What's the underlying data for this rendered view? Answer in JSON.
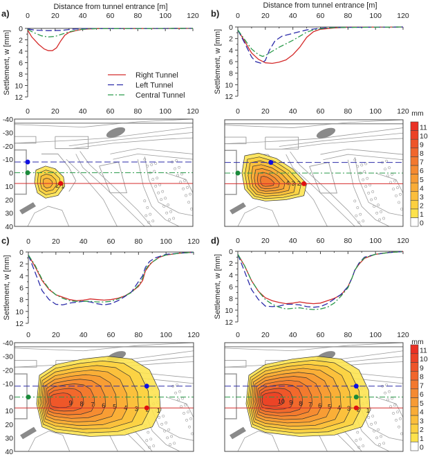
{
  "figure": {
    "x_title": "Distance from tunnel entrance [m]",
    "y_title": "Settlement, w [mm]",
    "legend": [
      "Right Tunnel",
      "Left Tunnel",
      "Central Tunnel"
    ],
    "colorbar_unit": "mm",
    "colorbar_ticks": [
      "0",
      "1",
      "2",
      "3",
      "4",
      "5",
      "6",
      "7",
      "8",
      "9",
      "10",
      "11"
    ],
    "colors": {
      "right": "#d42a2a",
      "left": "#2a2aa8",
      "central": "#2a9a4a",
      "map": "#9a9a9a"
    },
    "colormap": [
      "#ffffff",
      "#fde24c",
      "#fcd040",
      "#fbbe3b",
      "#f9ac37",
      "#f79b34",
      "#f58a31",
      "#f3782e",
      "#f1662c",
      "#ee5429",
      "#ec4226",
      "#ea3024"
    ]
  },
  "chart_data": [
    {
      "panel": "a)",
      "type": "line",
      "xlabel": "Distance from tunnel entrance [m]",
      "ylabel": "Settlement, w [mm]",
      "xlim": [
        0,
        120
      ],
      "ylim": [
        0,
        12
      ],
      "y_inverted": true,
      "xticks": [
        0,
        20,
        40,
        60,
        80,
        100,
        120
      ],
      "yticks": [
        0,
        2,
        4,
        6,
        8,
        10,
        12
      ],
      "legend": "center-right",
      "series": [
        {
          "name": "Right Tunnel",
          "style": "solid",
          "x": [
            0,
            3,
            8,
            12,
            15,
            18,
            21,
            24,
            27,
            30,
            35,
            40,
            50,
            120
          ],
          "y": [
            0.3,
            1.5,
            2.8,
            3.6,
            3.9,
            3.9,
            3.4,
            2.2,
            1.2,
            0.7,
            0.4,
            0.15,
            0.05,
            0
          ]
        },
        {
          "name": "Left Tunnel",
          "style": "dashed",
          "x": [
            0,
            5,
            15,
            25,
            30,
            35,
            40,
            120
          ],
          "y": [
            0.1,
            0.3,
            0.4,
            0.35,
            0.2,
            0.1,
            0.05,
            0
          ]
        },
        {
          "name": "Central Tunnel",
          "style": "dashdot",
          "x": [
            0,
            5,
            10,
            15,
            20,
            25,
            30,
            35,
            40,
            50,
            120
          ],
          "y": [
            0.2,
            0.8,
            1.3,
            1.5,
            1.4,
            1.0,
            0.6,
            0.35,
            0.15,
            0.05,
            0
          ]
        }
      ]
    },
    {
      "panel": "b)",
      "type": "line",
      "xlabel": "Distance from tunnel entrance [m]",
      "ylabel": "Settlement, w [mm]",
      "xlim": [
        0,
        120
      ],
      "ylim": [
        0,
        12
      ],
      "y_inverted": true,
      "xticks": [
        0,
        20,
        40,
        60,
        80,
        100,
        120
      ],
      "yticks": [
        0,
        2,
        4,
        6,
        8,
        10,
        12
      ],
      "series": [
        {
          "name": "Right Tunnel",
          "style": "solid",
          "x": [
            0,
            5,
            10,
            15,
            20,
            25,
            30,
            35,
            40,
            45,
            50,
            55,
            60,
            70,
            80,
            120
          ],
          "y": [
            0.5,
            2.5,
            4.5,
            5.6,
            6.2,
            6.3,
            6.1,
            5.7,
            4.8,
            3.5,
            1.8,
            0.8,
            0.4,
            0.15,
            0.05,
            0
          ]
        },
        {
          "name": "Left Tunnel",
          "style": "dashed",
          "x": [
            0,
            5,
            10,
            13,
            17,
            20,
            23,
            27,
            32,
            40,
            50,
            60,
            70,
            120
          ],
          "y": [
            0.5,
            2.8,
            5.2,
            6.0,
            6.3,
            5.8,
            4.0,
            2.4,
            1.6,
            1.1,
            0.5,
            0.2,
            0.08,
            0
          ]
        },
        {
          "name": "Central Tunnel",
          "style": "dashdot",
          "x": [
            0,
            5,
            10,
            15,
            18,
            21,
            25,
            30,
            40,
            50,
            55,
            60,
            70,
            120
          ],
          "y": [
            0.5,
            2.2,
            3.8,
            4.8,
            5.1,
            4.8,
            4.2,
            3.5,
            2.3,
            0.9,
            0.5,
            0.3,
            0.1,
            0
          ]
        }
      ]
    },
    {
      "panel": "c)",
      "type": "line",
      "xlim": [
        0,
        120
      ],
      "ylim": [
        0,
        12
      ],
      "y_inverted": true,
      "xticks": [
        0,
        20,
        40,
        60,
        80,
        100,
        120
      ],
      "yticks": [
        0,
        2,
        4,
        6,
        8,
        10,
        12
      ],
      "ylabel": "Settlement, w [mm]",
      "series": [
        {
          "name": "Right Tunnel",
          "style": "solid",
          "x": [
            0,
            5,
            10,
            15,
            20,
            25,
            30,
            35,
            40,
            45,
            50,
            55,
            60,
            65,
            70,
            75,
            80,
            83,
            85,
            88,
            90,
            95,
            100,
            110,
            120
          ],
          "y": [
            0.5,
            2.5,
            4.8,
            6.3,
            7.2,
            7.6,
            8.0,
            8.2,
            8.1,
            7.9,
            8.0,
            8.1,
            8.0,
            7.8,
            7.4,
            6.7,
            5.8,
            4.8,
            3.2,
            2.2,
            1.7,
            0.9,
            0.5,
            0.2,
            0.05
          ]
        },
        {
          "name": "Left Tunnel",
          "style": "dashed",
          "x": [
            0,
            5,
            10,
            15,
            20,
            25,
            30,
            40,
            45,
            50,
            55,
            60,
            65,
            70,
            75,
            80,
            83,
            85,
            88,
            92,
            100,
            110,
            120
          ],
          "y": [
            0.5,
            3.5,
            6.5,
            8.0,
            8.8,
            8.9,
            8.6,
            8.3,
            8.4,
            8.7,
            8.9,
            8.7,
            8.2,
            7.5,
            6.7,
            5.0,
            4.0,
            2.6,
            1.6,
            1.0,
            0.4,
            0.2,
            0.05
          ]
        },
        {
          "name": "Central Tunnel",
          "style": "dashdot",
          "x": [
            0,
            5,
            10,
            15,
            20,
            25,
            30,
            35,
            40,
            45,
            50,
            55,
            60,
            65,
            70,
            75,
            80,
            83,
            85,
            88,
            92,
            95,
            100,
            110,
            120
          ],
          "y": [
            0.5,
            2.3,
            4.6,
            6.2,
            7.2,
            7.8,
            8.2,
            8.3,
            8.3,
            8.3,
            8.4,
            8.4,
            8.3,
            7.9,
            7.4,
            6.8,
            5.6,
            4.4,
            3.0,
            2.0,
            1.4,
            0.9,
            0.5,
            0.2,
            0.05
          ]
        }
      ]
    },
    {
      "panel": "d)",
      "type": "line",
      "xlim": [
        0,
        120
      ],
      "ylim": [
        0,
        12
      ],
      "y_inverted": true,
      "xticks": [
        0,
        20,
        40,
        60,
        80,
        100,
        120
      ],
      "yticks": [
        0,
        2,
        4,
        6,
        8,
        10,
        12
      ],
      "ylabel": "Settlement, w [mm]",
      "series": [
        {
          "name": "Right Tunnel",
          "style": "solid",
          "x": [
            0,
            5,
            10,
            15,
            20,
            25,
            30,
            35,
            40,
            45,
            50,
            55,
            60,
            65,
            70,
            75,
            80,
            83,
            85,
            88,
            92,
            100,
            110,
            120
          ],
          "y": [
            0.5,
            2.5,
            5.0,
            6.8,
            7.9,
            8.4,
            8.7,
            8.9,
            8.8,
            8.6,
            8.8,
            8.9,
            8.8,
            8.4,
            8.0,
            7.4,
            6.0,
            4.5,
            3.2,
            2.2,
            1.2,
            0.5,
            0.2,
            0.05
          ]
        },
        {
          "name": "Left Tunnel",
          "style": "dashed",
          "x": [
            0,
            5,
            10,
            15,
            20,
            25,
            30,
            35,
            40,
            45,
            50,
            55,
            60,
            65,
            70,
            75,
            80,
            83,
            85,
            88,
            92,
            100,
            110,
            120
          ],
          "y": [
            0.5,
            3.5,
            6.5,
            8.2,
            9.3,
            9.4,
            9.3,
            9.0,
            9.0,
            9.1,
            9.4,
            9.5,
            9.4,
            8.9,
            8.1,
            7.3,
            6.0,
            4.5,
            3.2,
            2.0,
            1.0,
            0.5,
            0.2,
            0.05
          ]
        },
        {
          "name": "Central Tunnel",
          "style": "dashdot",
          "x": [
            0,
            5,
            10,
            15,
            20,
            25,
            30,
            35,
            40,
            45,
            50,
            55,
            60,
            65,
            70,
            75,
            80,
            83,
            85,
            88,
            92,
            100,
            110,
            120
          ],
          "y": [
            0.5,
            2.5,
            5.0,
            6.8,
            8.2,
            9.0,
            9.5,
            9.8,
            9.7,
            9.6,
            9.8,
            9.9,
            9.8,
            9.5,
            8.8,
            7.6,
            6.2,
            4.5,
            3.2,
            2.1,
            1.1,
            0.5,
            0.2,
            0.05
          ]
        }
      ]
    },
    {
      "panel": "a) map",
      "type": "heatmap",
      "xlim": [
        -10,
        120
      ],
      "ylim": [
        -40,
        40
      ],
      "xticks": [
        0,
        20,
        40,
        60,
        80,
        100,
        120
      ],
      "yticks": [
        -40,
        -30,
        -20,
        -10,
        0,
        10,
        20,
        30,
        40
      ],
      "tunnels": {
        "left_y": -8,
        "central_y": 0,
        "right_y": 8
      },
      "faces": {
        "left_x": 0,
        "central_x": 0,
        "right_x": 24
      },
      "max_level": 4,
      "core": [
        14,
        8
      ],
      "labels": [
        "1",
        "2"
      ],
      "outline_1mm": [
        [
          6,
          -2
        ],
        [
          13,
          -5
        ],
        [
          20,
          -3
        ],
        [
          26,
          3
        ],
        [
          27,
          10
        ],
        [
          22,
          17
        ],
        [
          13,
          19
        ],
        [
          7,
          15
        ],
        [
          5,
          7
        ]
      ]
    },
    {
      "panel": "b) map",
      "type": "heatmap",
      "xlim": [
        -10,
        120
      ],
      "ylim": [
        -40,
        40
      ],
      "tunnels": {
        "left_y": -8,
        "central_y": 0,
        "right_y": 8
      },
      "faces": {
        "left_x": 24,
        "central_x": 0,
        "right_x": 48
      },
      "max_level": 7,
      "core": [
        20,
        7
      ],
      "labels": [
        "1",
        "2",
        "3",
        "4"
      ],
      "outline_1mm": [
        [
          5,
          -13
        ],
        [
          15,
          -15
        ],
        [
          28,
          -11
        ],
        [
          40,
          -3
        ],
        [
          50,
          8
        ],
        [
          48,
          17
        ],
        [
          35,
          20
        ],
        [
          20,
          21
        ],
        [
          11,
          19
        ],
        [
          5,
          12
        ],
        [
          3,
          0
        ]
      ]
    },
    {
      "panel": "c) map",
      "type": "heatmap",
      "xlim": [
        -10,
        120
      ],
      "ylim": [
        -40,
        40
      ],
      "tunnels": {
        "left_y": -8,
        "central_y": 0,
        "right_y": 8
      },
      "faces": {
        "left_x": 86,
        "central_x": 0,
        "right_x": 86
      },
      "max_level": 9,
      "core": [
        18,
        3
      ],
      "labels": [
        "1",
        "2",
        "3",
        "4",
        "5",
        "6",
        "7",
        "8",
        "9"
      ],
      "outline_1mm": [
        [
          8,
          -16
        ],
        [
          20,
          -24
        ],
        [
          40,
          -28
        ],
        [
          58,
          -30
        ],
        [
          75,
          -28
        ],
        [
          88,
          -20
        ],
        [
          95,
          -5
        ],
        [
          96,
          10
        ],
        [
          90,
          22
        ],
        [
          70,
          28
        ],
        [
          45,
          29
        ],
        [
          20,
          26
        ],
        [
          10,
          22
        ],
        [
          6,
          5
        ]
      ]
    },
    {
      "panel": "d) map",
      "type": "heatmap",
      "xlim": [
        -10,
        120
      ],
      "ylim": [
        -40,
        40
      ],
      "tunnels": {
        "left_y": -8,
        "central_y": 0,
        "right_y": 8
      },
      "faces": {
        "left_x": 86,
        "central_x": 86,
        "right_x": 86
      },
      "max_level": 10,
      "core": [
        20,
        2
      ],
      "labels": [
        "1",
        "2",
        "3",
        "4",
        "5",
        "6",
        "7",
        "8",
        "9",
        "10"
      ],
      "outline_1mm": [
        [
          8,
          -16
        ],
        [
          20,
          -24
        ],
        [
          40,
          -28
        ],
        [
          58,
          -30
        ],
        [
          75,
          -28
        ],
        [
          88,
          -20
        ],
        [
          95,
          -5
        ],
        [
          96,
          10
        ],
        [
          90,
          22
        ],
        [
          70,
          28
        ],
        [
          45,
          29
        ],
        [
          20,
          26
        ],
        [
          10,
          22
        ],
        [
          6,
          5
        ]
      ]
    }
  ]
}
